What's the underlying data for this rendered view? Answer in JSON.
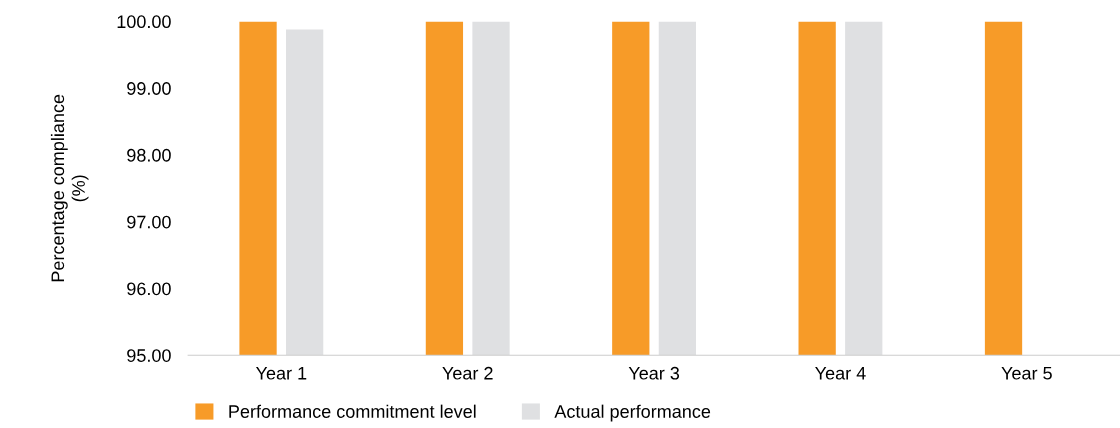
{
  "chart_data": {
    "type": "bar",
    "ylabel": "Percentage compliance\n(%)",
    "categories": [
      "Year 1",
      "Year 2",
      "Year 3",
      "Year 4",
      "Year 5"
    ],
    "series": [
      {
        "name": "Performance commitment level",
        "color": "#f79b28",
        "values": [
          100.0,
          100.0,
          100.0,
          100.0,
          100.0
        ]
      },
      {
        "name": "Actual performance",
        "color": "#dfe0e2",
        "values": [
          99.88,
          100.0,
          100.0,
          100.0,
          null
        ]
      }
    ],
    "ylim": [
      95,
      100
    ],
    "yticks": [
      {
        "value": 95,
        "label": "95.00"
      },
      {
        "value": 96,
        "label": "96.00"
      },
      {
        "value": 97,
        "label": "97.00"
      },
      {
        "value": 98,
        "label": "98.00"
      },
      {
        "value": 99,
        "label": "99.00"
      },
      {
        "value": 100,
        "label": "100.00"
      }
    ],
    "grid": false,
    "legend": "bottom left"
  }
}
